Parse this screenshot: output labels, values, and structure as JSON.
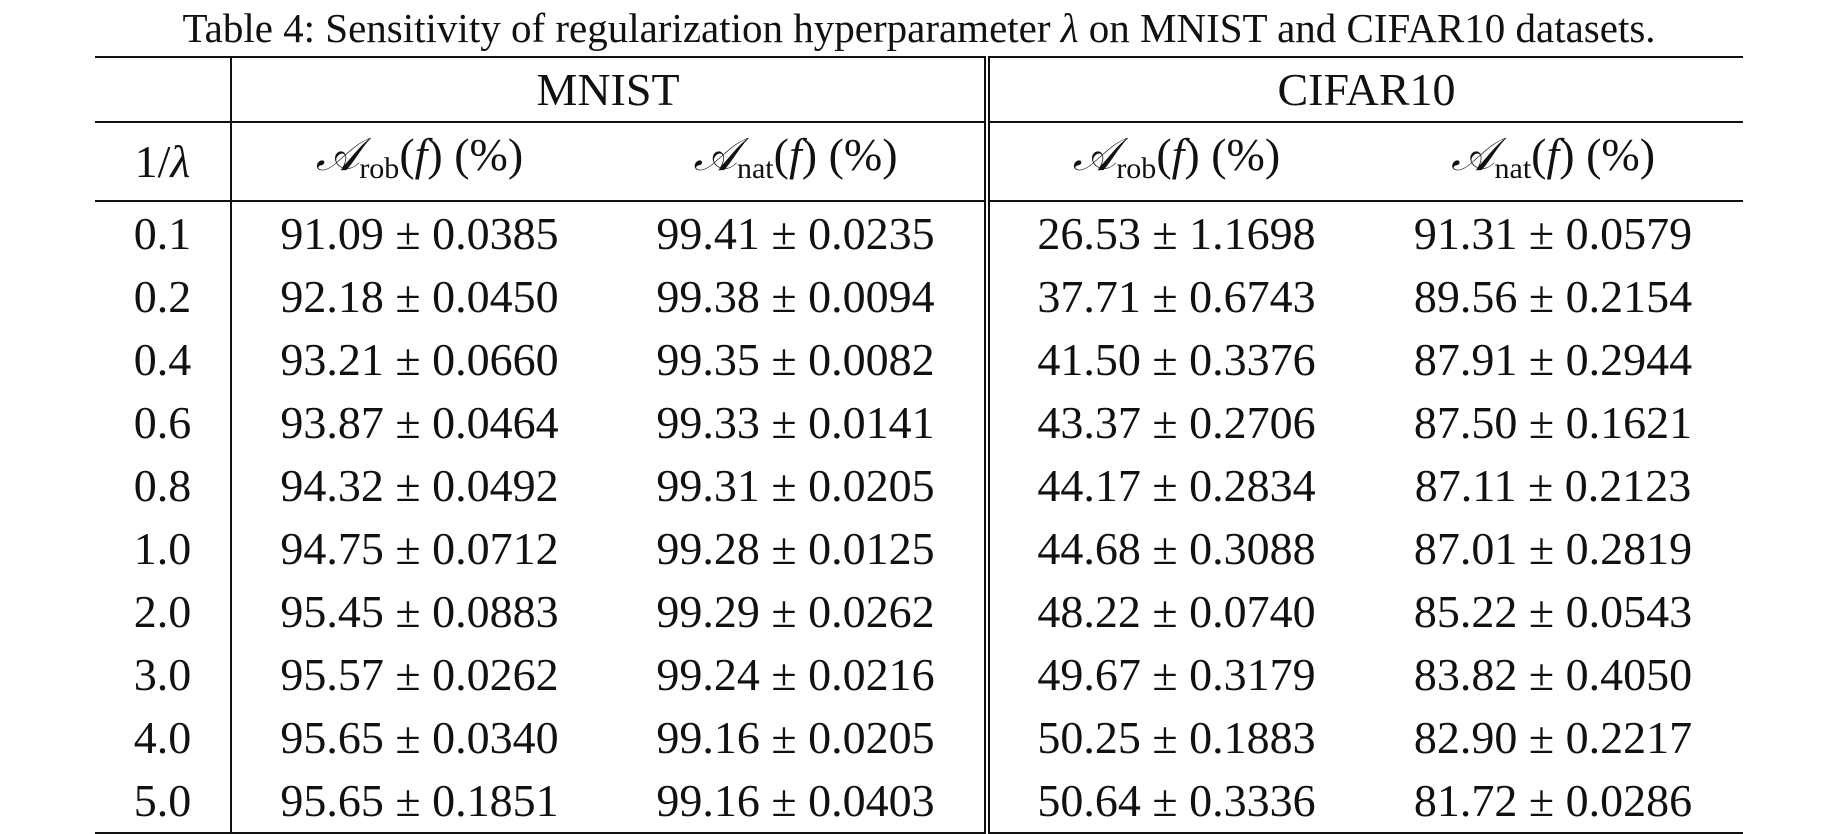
{
  "caption": {
    "prefix": "Table 4: Sensitivity of regularization hyperparameter ",
    "symbol": "λ",
    "suffix": " on MNIST and CIFAR10 datasets."
  },
  "table": {
    "groups": [
      "MNIST",
      "CIFAR10"
    ],
    "param_header": "1/λ",
    "metric_headers": [
      {
        "symbol": "𝒜",
        "sub": "rob",
        "rest": "(f) (%)"
      },
      {
        "symbol": "𝒜",
        "sub": "nat",
        "rest": "(f) (%)"
      },
      {
        "symbol": "𝒜",
        "sub": "rob",
        "rest": "(f) (%)"
      },
      {
        "symbol": "𝒜",
        "sub": "nat",
        "rest": "(f) (%)"
      }
    ],
    "rows": [
      {
        "param": "0.1",
        "cells": [
          "91.09 ± 0.0385",
          "99.41 ± 0.0235",
          "26.53 ± 1.1698",
          "91.31 ± 0.0579"
        ]
      },
      {
        "param": "0.2",
        "cells": [
          "92.18 ± 0.0450",
          "99.38 ± 0.0094",
          "37.71 ± 0.6743",
          "89.56 ± 0.2154"
        ]
      },
      {
        "param": "0.4",
        "cells": [
          "93.21 ± 0.0660",
          "99.35 ± 0.0082",
          "41.50 ± 0.3376",
          "87.91 ± 0.2944"
        ]
      },
      {
        "param": "0.6",
        "cells": [
          "93.87 ± 0.0464",
          "99.33 ± 0.0141",
          "43.37 ± 0.2706",
          "87.50 ± 0.1621"
        ]
      },
      {
        "param": "0.8",
        "cells": [
          "94.32 ± 0.0492",
          "99.31 ± 0.0205",
          "44.17 ± 0.2834",
          "87.11 ± 0.2123"
        ]
      },
      {
        "param": "1.0",
        "cells": [
          "94.75 ± 0.0712",
          "99.28 ± 0.0125",
          "44.68 ± 0.3088",
          "87.01 ± 0.2819"
        ]
      },
      {
        "param": "2.0",
        "cells": [
          "95.45 ± 0.0883",
          "99.29 ± 0.0262",
          "48.22 ± 0.0740",
          "85.22 ± 0.0543"
        ]
      },
      {
        "param": "3.0",
        "cells": [
          "95.57 ± 0.0262",
          "99.24 ± 0.0216",
          "49.67 ± 0.3179",
          "83.82 ± 0.4050"
        ]
      },
      {
        "param": "4.0",
        "cells": [
          "95.65 ± 0.0340",
          "99.16 ± 0.0205",
          "50.25 ± 0.1883",
          "82.90 ± 0.2217"
        ]
      },
      {
        "param": "5.0",
        "cells": [
          "95.65 ± 0.1851",
          "99.16 ± 0.0403",
          "50.64 ± 0.3336",
          "81.72 ± 0.0286"
        ]
      }
    ]
  }
}
